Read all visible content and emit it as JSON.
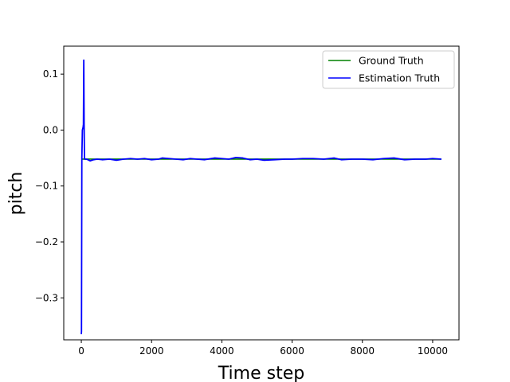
{
  "chart_data": {
    "type": "line",
    "title": "",
    "xlabel": "Time step",
    "ylabel": "pitch",
    "xlim": [
      -500,
      10750
    ],
    "ylim": [
      -0.375,
      0.15
    ],
    "xticks": [
      0,
      2000,
      4000,
      6000,
      8000,
      10000
    ],
    "xtick_labels": [
      "0",
      "2000",
      "4000",
      "6000",
      "8000",
      "10000"
    ],
    "yticks": [
      0.1,
      0.0,
      -0.1,
      -0.2,
      -0.3
    ],
    "ytick_labels": [
      "0.1",
      "0.0",
      "−0.1",
      "−0.2",
      "−0.3"
    ],
    "grid": false,
    "legend_position": "top-right",
    "series": [
      {
        "name": "Ground Truth",
        "color": "#008000",
        "x": [
          0,
          10250
        ],
        "y": [
          -0.052,
          -0.052
        ]
      },
      {
        "name": "Estimation Truth",
        "color": "#0000ff",
        "x": [
          0,
          5,
          15,
          30,
          50,
          60,
          70,
          80,
          90,
          100,
          150,
          250,
          350,
          450,
          600,
          800,
          1000,
          1200,
          1400,
          1600,
          1800,
          2000,
          2200,
          2300,
          2500,
          2700,
          2900,
          3100,
          3300,
          3500,
          3800,
          4000,
          4200,
          4400,
          4600,
          4800,
          5000,
          5200,
          5500,
          5800,
          6000,
          6300,
          6600,
          6900,
          7200,
          7400,
          7700,
          8000,
          8300,
          8600,
          8900,
          9200,
          9500,
          9800,
          10000,
          10250
        ],
        "y": [
          -0.365,
          -0.36,
          -0.05,
          0.0,
          0.005,
          0.01,
          0.125,
          0.01,
          -0.05,
          -0.052,
          -0.052,
          -0.055,
          -0.053,
          -0.052,
          -0.053,
          -0.052,
          -0.054,
          -0.052,
          -0.051,
          -0.052,
          -0.051,
          -0.053,
          -0.052,
          -0.05,
          -0.051,
          -0.052,
          -0.053,
          -0.051,
          -0.052,
          -0.053,
          -0.05,
          -0.051,
          -0.052,
          -0.049,
          -0.05,
          -0.053,
          -0.052,
          -0.054,
          -0.053,
          -0.052,
          -0.052,
          -0.051,
          -0.051,
          -0.052,
          -0.05,
          -0.053,
          -0.052,
          -0.052,
          -0.053,
          -0.051,
          -0.05,
          -0.053,
          -0.052,
          -0.052,
          -0.051,
          -0.052
        ]
      }
    ]
  }
}
